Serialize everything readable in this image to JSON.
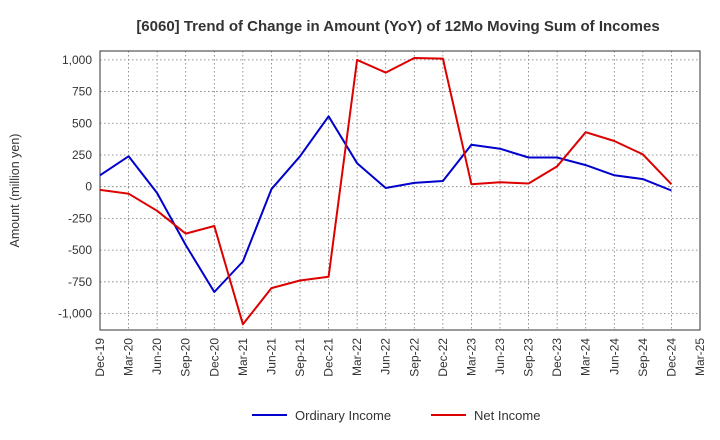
{
  "chart_data": {
    "type": "line",
    "title": "[6060]  Trend of Change in Amount (YoY) of 12Mo Moving Sum of Incomes",
    "xlabel": "",
    "ylabel": "Amount (million yen)",
    "ylim": [
      -1130,
      1070
    ],
    "yticks": [
      1000,
      750,
      500,
      250,
      0,
      -250,
      -500,
      -750,
      -1000
    ],
    "ytick_labels": [
      "1,000",
      "750",
      "500",
      "250",
      "0",
      "-250",
      "-500",
      "-750",
      "-1,000"
    ],
    "categories": [
      "Dec-19",
      "Mar-20",
      "Jun-20",
      "Sep-20",
      "Dec-20",
      "Mar-21",
      "Jun-21",
      "Sep-21",
      "Dec-21",
      "Mar-22",
      "Jun-22",
      "Sep-22",
      "Dec-22",
      "Mar-23",
      "Jun-23",
      "Sep-23",
      "Dec-23",
      "Mar-24",
      "Jun-24",
      "Sep-24",
      "Dec-24",
      "Mar-25"
    ],
    "grid": true,
    "legend_position": "bottom-center",
    "series": [
      {
        "name": "Ordinary Income",
        "color": "#0000cc",
        "values": [
          90,
          240,
          -50,
          -460,
          -830,
          -590,
          -20,
          240,
          555,
          185,
          -10,
          30,
          45,
          330,
          300,
          230,
          230,
          170,
          90,
          60,
          -30,
          null
        ]
      },
      {
        "name": "Net Income",
        "color": "#dd0000",
        "values": [
          -25,
          -55,
          -190,
          -370,
          -310,
          -1085,
          -800,
          -740,
          -710,
          1000,
          900,
          1015,
          1010,
          20,
          35,
          25,
          160,
          430,
          360,
          255,
          20,
          null
        ]
      }
    ]
  }
}
